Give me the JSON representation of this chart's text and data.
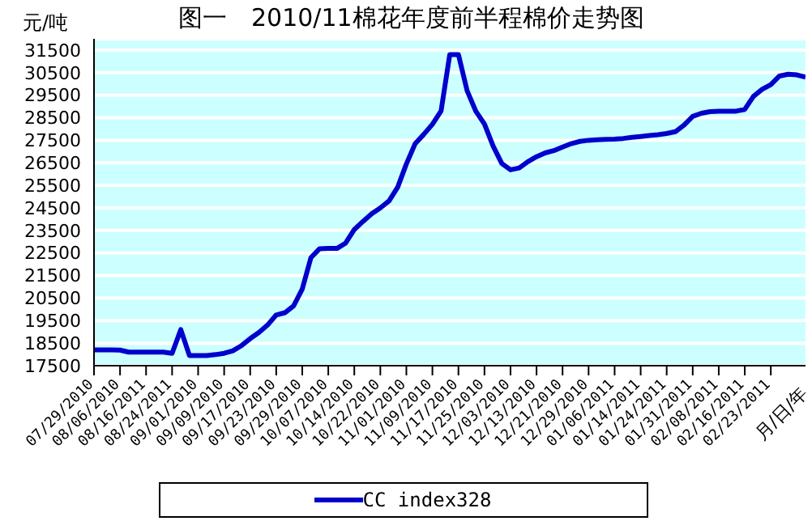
{
  "chart_data": {
    "type": "line",
    "title": "图一　2010/11棉花年度前半程棉价走势图",
    "ylabel": "元/吨",
    "xlabel": "月/日/年",
    "categories": [
      "07/29/2010",
      null,
      null,
      "08/06/2010",
      null,
      null,
      "08/16/2011",
      null,
      null,
      "08/24/2011",
      null,
      null,
      "09/01/2010",
      null,
      null,
      "09/09/2010",
      null,
      null,
      "09/17/2010",
      null,
      null,
      "09/23/2010",
      null,
      null,
      "09/29/2010",
      null,
      null,
      "10/07/2010",
      null,
      null,
      "10/14/2010",
      null,
      null,
      "10/22/2010",
      null,
      null,
      "11/01/2010",
      null,
      null,
      "11/09/2010",
      null,
      null,
      "11/17/2010",
      null,
      null,
      "11/25/2010",
      null,
      null,
      "12/03/2010",
      null,
      null,
      "12/13/2010",
      null,
      null,
      "12/21/2010",
      null,
      null,
      "12/29/2010",
      null,
      null,
      "01/06/2011",
      null,
      null,
      "01/14/2011",
      null,
      null,
      "01/24/2011",
      null,
      null,
      "01/31/2011",
      null,
      null,
      "02/08/2011",
      null,
      null,
      "02/16/2011",
      null,
      null,
      "02/23/2011",
      null,
      null,
      null,
      null
    ],
    "series": [
      {
        "name": "CC index328",
        "color": "#0000cc",
        "values": [
          18200,
          18200,
          18200,
          18190,
          18100,
          18100,
          18100,
          18100,
          18100,
          18050,
          19100,
          17950,
          17950,
          17950,
          17990,
          18050,
          18160,
          18390,
          18700,
          18970,
          19300,
          19750,
          19850,
          20150,
          20900,
          22290,
          22690,
          22700,
          22700,
          22940,
          23540,
          23900,
          24240,
          24500,
          24810,
          25420,
          26450,
          27340,
          27760,
          28210,
          28800,
          31300,
          31300,
          29700,
          28790,
          28220,
          27240,
          26470,
          26190,
          26270,
          26550,
          26770,
          26940,
          27040,
          27200,
          27350,
          27450,
          27500,
          27520,
          27540,
          27550,
          27580,
          27630,
          27670,
          27710,
          27750,
          27800,
          27880,
          28170,
          28560,
          28700,
          28770,
          28790,
          28790,
          28790,
          28870,
          29450,
          29760,
          29970,
          30350,
          30430,
          30400,
          30300
        ]
      }
    ],
    "ylim": [
      17500,
      32000
    ],
    "yticks": [
      17500,
      18500,
      19500,
      20500,
      21500,
      22500,
      23500,
      24500,
      25500,
      26500,
      27500,
      28500,
      29500,
      30500,
      31500
    ],
    "grid": "y",
    "legend": "bottom",
    "marker": "none",
    "line_style": "solid"
  }
}
